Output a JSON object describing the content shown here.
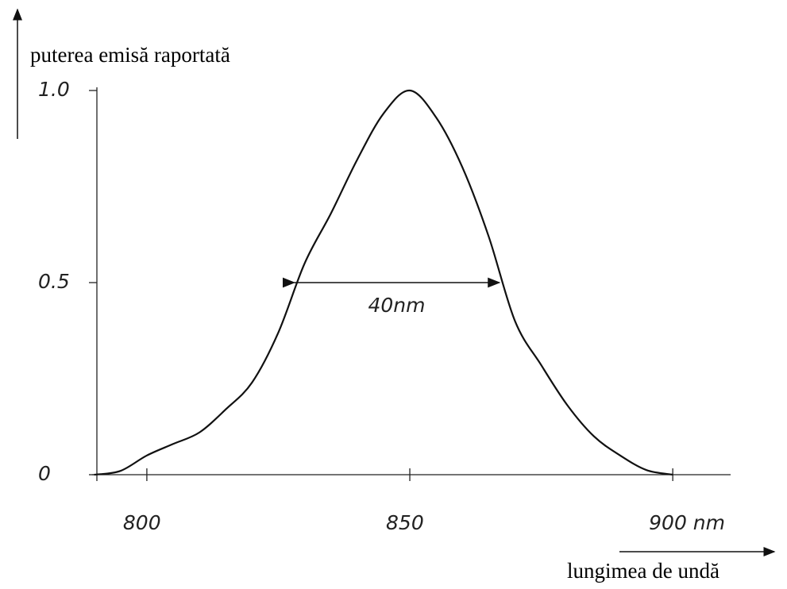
{
  "chart_data": {
    "type": "line",
    "ylabel": "puterea emisă raportată",
    "xlabel": "lungimea de undă",
    "x": [
      790,
      795,
      800,
      805,
      810,
      815,
      820,
      825,
      830,
      835,
      840,
      845,
      850,
      855,
      860,
      865,
      870,
      875,
      880,
      885,
      890,
      895,
      900
    ],
    "series": [
      {
        "color": "#111111",
        "values": [
          0,
          0.01,
          0.05,
          0.08,
          0.11,
          0.17,
          0.24,
          0.37,
          0.55,
          0.68,
          0.82,
          0.94,
          1.0,
          0.93,
          0.8,
          0.62,
          0.4,
          0.285,
          0.18,
          0.1,
          0.05,
          0.012,
          0
        ]
      }
    ],
    "xlim": [
      790.5,
      911
    ],
    "ylim": [
      0,
      1
    ],
    "xticks": [
      800,
      850,
      {
        "value": 900,
        "label": "900 nm"
      }
    ],
    "yticks": [
      0,
      0.5,
      {
        "value": 1,
        "label": "1.0"
      }
    ],
    "annotation": {
      "text": "40nm",
      "x": [
        828,
        867
      ],
      "y": 0.5
    }
  }
}
